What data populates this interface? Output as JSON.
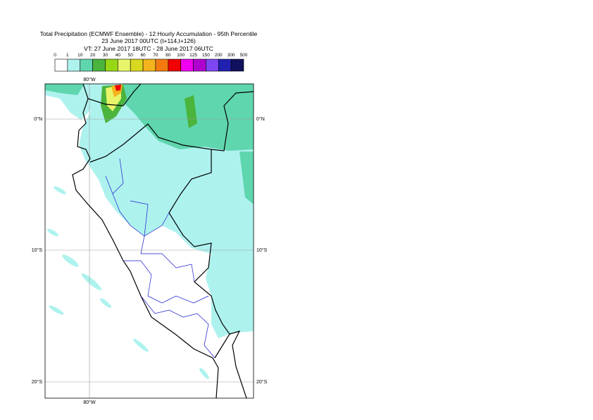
{
  "header": {
    "title": "Total Precipitation (ECMWF Ensemble) - 12 Hourly Accumulation - 95th Percentile",
    "base_time": "23 June 2017 00UTC (t+114,t+126)",
    "valid_time": "VT: 27 June 2017 18UTC - 28 June 2017 06UTC"
  },
  "legend": {
    "labels": [
      "0",
      "1",
      "10",
      "20",
      "30",
      "40",
      "50",
      "60",
      "70",
      "80",
      "100",
      "125",
      "150",
      "200",
      "300",
      "500"
    ],
    "colors": [
      "#ffffff",
      "#aef2ee",
      "#5fd6ae",
      "#4bb43c",
      "#97d816",
      "#e8f56a",
      "#d8d820",
      "#f4b41e",
      "#f47a10",
      "#f00000",
      "#f000f0",
      "#b000d0",
      "#7e46f2",
      "#2020b0",
      "#10105c"
    ]
  },
  "map": {
    "lon_labels": [
      "80°W"
    ],
    "lat_labels": [
      "0°N",
      "10°S",
      "20°S"
    ]
  }
}
